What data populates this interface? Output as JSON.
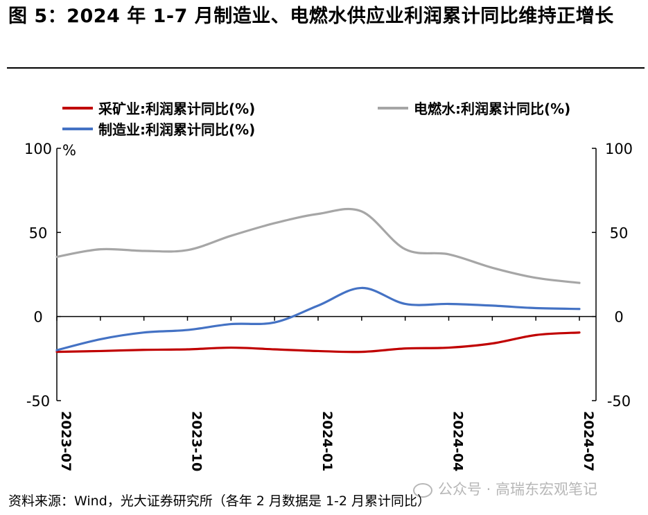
{
  "figure": {
    "title": "图 5：2024 年 1-7 月制造业、电燃水供应业利润累计同比维持正增长",
    "source": "资料来源：Wind，光大证券研究所（各年 2 月数据是 1-2 月累计同比）",
    "watermark": "公众号 · 高瑞东宏观笔记"
  },
  "chart_data": {
    "type": "line",
    "title": "",
    "unit_label": "%",
    "ylim": [
      -50,
      100
    ],
    "yticks": [
      100,
      50,
      0,
      -50
    ],
    "ytick_labels": [
      "100",
      "50",
      "0",
      "-50"
    ],
    "x": [
      "2023-07",
      "2023-08",
      "2023-09",
      "2023-10",
      "2023-11",
      "2023-12",
      "2024-01",
      "2024-02",
      "2024-03",
      "2024-04",
      "2024-05",
      "2024-06",
      "2024-07"
    ],
    "xtick_labels": [
      "2023-07",
      "2023-10",
      "2024-01",
      "2024-04",
      "2024-07"
    ],
    "series": [
      {
        "name": "采矿业:利润累计同比(%)",
        "color": "#c00000",
        "values": [
          -21.0,
          -20.5,
          -19.8,
          -19.5,
          -18.5,
          -19.5,
          -20.5,
          -21.0,
          -19.0,
          -18.5,
          -16.0,
          -11.0,
          -9.5
        ]
      },
      {
        "name": "电燃水:利润累计同比(%)",
        "color": "#a6a6a6",
        "values": [
          35.5,
          40.0,
          39.0,
          39.5,
          48.0,
          55.5,
          61.0,
          62.5,
          40.0,
          37.0,
          29.0,
          23.0,
          20.0
        ]
      },
      {
        "name": "制造业:利润累计同比(%)",
        "color": "#4472c4",
        "values": [
          -20.0,
          -13.5,
          -9.5,
          -8.0,
          -4.5,
          -3.5,
          6.5,
          17.0,
          7.5,
          7.5,
          6.5,
          5.0,
          4.5
        ]
      }
    ]
  }
}
